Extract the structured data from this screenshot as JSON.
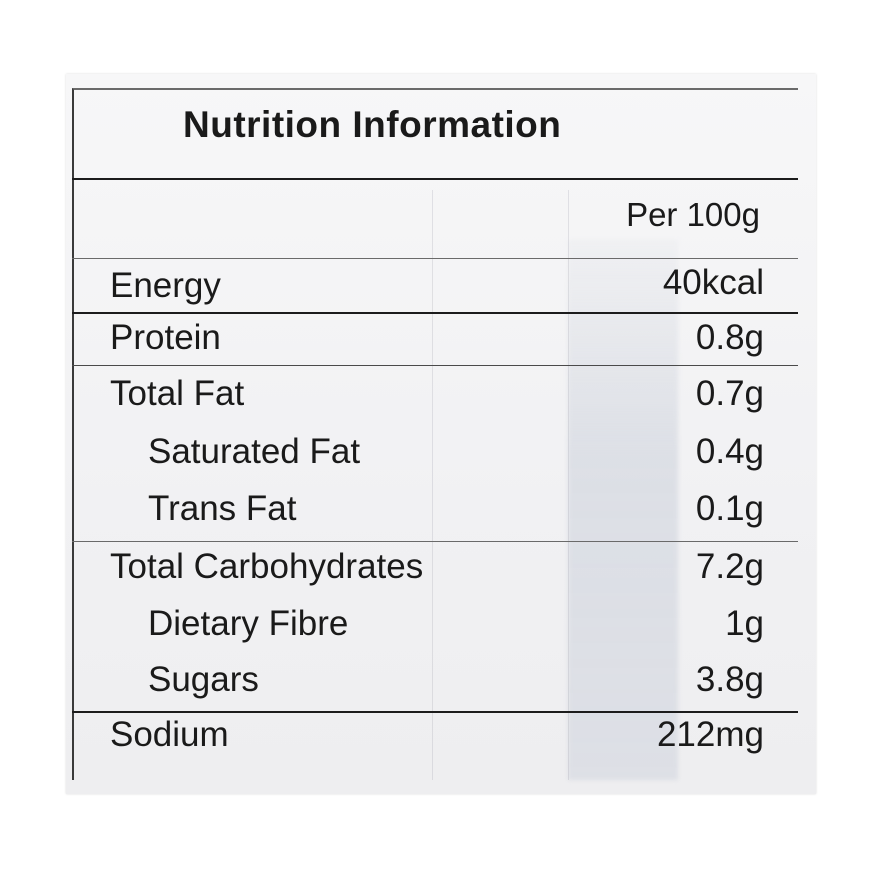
{
  "label": {
    "title": "Nutrition Information",
    "column_header": "Per 100g",
    "rows": [
      {
        "name": "Energy",
        "value": "40kcal"
      },
      {
        "name": "Protein",
        "value": "0.8g"
      },
      {
        "name": "Total Fat",
        "value": "0.7g"
      },
      {
        "name": "Saturated Fat",
        "value": "0.4g"
      },
      {
        "name": "Trans Fat",
        "value": "0.1g"
      },
      {
        "name": "Total Carbohydrates",
        "value": "7.2g"
      },
      {
        "name": "Dietary Fibre",
        "value": "1g"
      },
      {
        "name": "Sugars",
        "value": "3.8g"
      },
      {
        "name": "Sodium",
        "value": "212mg"
      }
    ]
  },
  "colors": {
    "ink": "#1a1a1a",
    "paper": "#f4f4f6",
    "show_through": "#c4cad6"
  }
}
